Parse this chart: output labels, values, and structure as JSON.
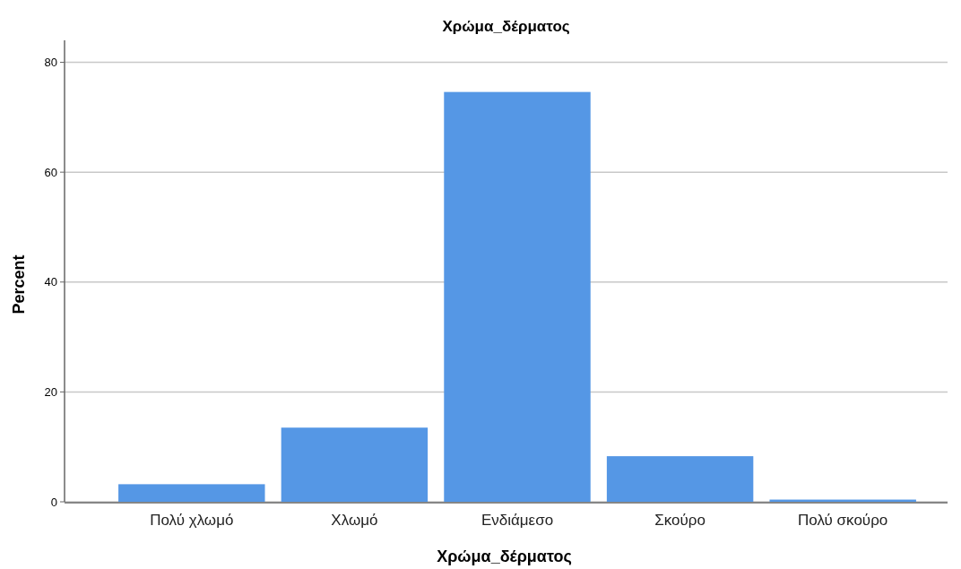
{
  "chart_data": {
    "type": "bar",
    "title": "Χρώμα_δέρματος",
    "xlabel": "Χρώμα_δέρματος",
    "ylabel": "Percent",
    "categories": [
      "Πολύ χλωμό",
      "Χλωμό",
      "Ενδιάμεσο",
      "Σκούρο",
      "Πολύ σκούρο"
    ],
    "values": [
      3.2,
      13.5,
      74.6,
      8.3,
      0.4
    ],
    "color": "#5597e5",
    "ylim": [
      0,
      84
    ],
    "yticks": [
      0,
      20,
      40,
      60,
      80
    ],
    "grid": "y",
    "legend": false
  }
}
